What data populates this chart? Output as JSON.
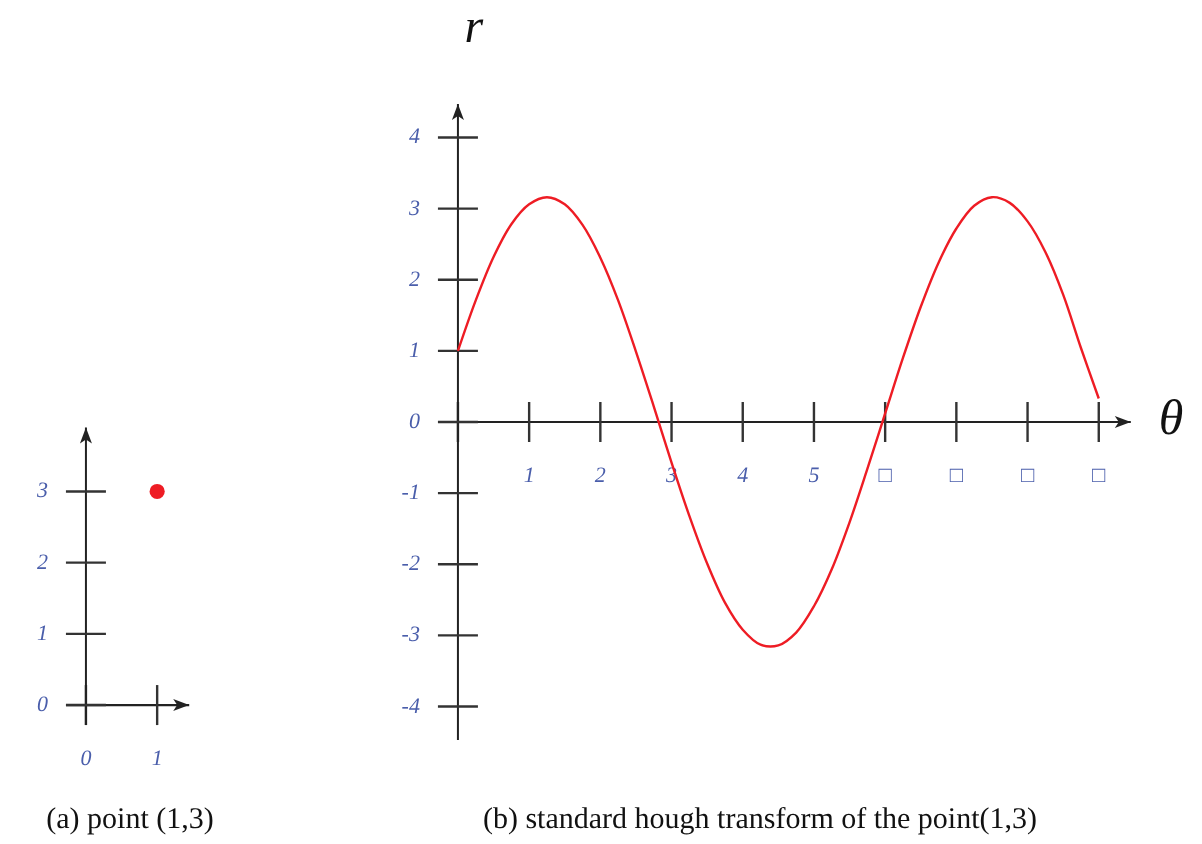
{
  "chart_data": [
    {
      "type": "scatter",
      "title": "(a) point (1,3)",
      "x": [
        1
      ],
      "values": [
        3
      ],
      "color": "#ee1c24",
      "marker": "circle",
      "xlim": [
        -0.28,
        1.45
      ],
      "ylim": [
        -0.28,
        3.9
      ],
      "xticks": [
        0,
        1
      ],
      "yticks": [
        0,
        1,
        2,
        3
      ]
    },
    {
      "type": "line",
      "title": "(b) standard hough transform of the point(1,3)",
      "xlabel": "θ",
      "ylabel": "r",
      "color": "#ee1c24",
      "x": [
        0,
        0.25,
        0.5,
        0.75,
        1,
        1.25,
        1.5,
        1.75,
        2,
        2.25,
        2.5,
        2.75,
        3,
        3.25,
        3.5,
        3.75,
        4,
        4.25,
        4.5,
        4.75,
        5,
        5.25,
        5.5,
        5.75,
        6,
        6.25,
        6.5,
        6.75,
        7,
        7.25,
        7.5,
        7.75,
        8,
        8.25,
        8.5,
        8.75,
        9
      ],
      "values": [
        1.0,
        1.71,
        2.32,
        2.78,
        3.06,
        3.16,
        3.06,
        2.77,
        2.31,
        1.71,
        0.99,
        0.22,
        -0.57,
        -1.32,
        -1.99,
        -2.54,
        -2.92,
        -3.13,
        -3.14,
        -2.96,
        -2.59,
        -2.07,
        -1.41,
        -0.66,
        0.12,
        0.9,
        1.62,
        2.24,
        2.72,
        3.04,
        3.16,
        3.08,
        2.82,
        2.39,
        1.79,
        1.04,
        0.33
      ],
      "xlim": [
        -0.28,
        9.45
      ],
      "ylim": [
        -4.47,
        4.47
      ],
      "xticks": [
        {
          "value": 0,
          "label": null
        },
        1,
        2,
        3,
        4,
        5,
        {
          "value": 6,
          "label": "□"
        },
        {
          "value": 7,
          "label": "□"
        },
        {
          "value": 8,
          "label": "□"
        },
        {
          "value": 9,
          "label": "□"
        }
      ],
      "yticks": [
        -4,
        -3,
        -2,
        -1,
        0,
        1,
        2,
        3,
        4
      ]
    }
  ]
}
